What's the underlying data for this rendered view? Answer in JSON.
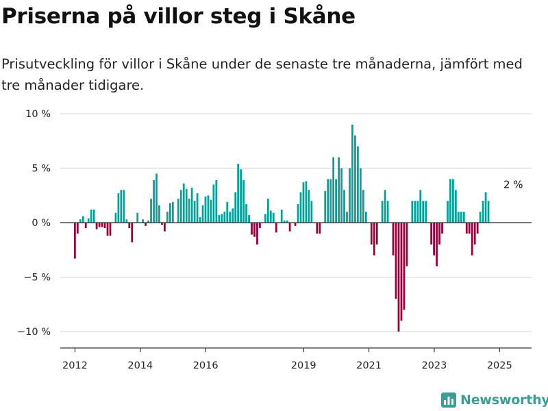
{
  "title": "Priserna på villor steg i Skåne",
  "subtitle": "Prisutveckling för villor i Skåne under de senaste tre månaderna, jämfört med tre månader tidigare.",
  "brand": {
    "name": "Newsworthy",
    "color": "#3a9e97",
    "icon": "newsworthy-logo-icon"
  },
  "chart_data": {
    "type": "bar",
    "ylim": [
      -11.5,
      10.5
    ],
    "xlim": [
      2011.55,
      2025.98
    ],
    "yticks": [
      10,
      5,
      0,
      -5,
      -10
    ],
    "ytick_labels": [
      "10 %",
      "5 %",
      "0 %",
      "−5 %",
      "−10 %"
    ],
    "xticks": [
      2012,
      2014,
      2016,
      2019,
      2021,
      2023,
      2025
    ],
    "xtick_labels": [
      "2012",
      "2014",
      "2016",
      "2019",
      "2021",
      "2023",
      "2025"
    ],
    "grid": true,
    "colors": {
      "positive": "#00a39a",
      "negative": "#9c0039"
    },
    "annotation": {
      "text": "2 %",
      "x": 2025.42,
      "y": 2.8
    },
    "x_start": 2012.0,
    "x_step": 0.0833,
    "values": [
      -3.3,
      -1.0,
      0.3,
      0.6,
      -0.5,
      0.4,
      1.2,
      1.2,
      -0.6,
      -0.4,
      -0.4,
      -0.5,
      -1.2,
      -1.2,
      0.0,
      0.9,
      2.7,
      3.0,
      3.0,
      0.3,
      -0.5,
      -1.8,
      0.0,
      0.9,
      0.0,
      0.3,
      -0.3,
      0.2,
      2.2,
      3.9,
      4.5,
      1.6,
      -0.2,
      -0.8,
      1.0,
      1.8,
      1.9,
      0.0,
      2.2,
      3.0,
      3.6,
      3.1,
      2.2,
      3.2,
      2.0,
      2.7,
      0.5,
      1.6,
      2.4,
      2.5,
      2.1,
      3.5,
      3.9,
      0.7,
      0.8,
      1.0,
      1.9,
      1.0,
      1.3,
      2.8,
      5.4,
      4.9,
      3.9,
      1.7,
      0.7,
      -1.1,
      -1.3,
      -2.0,
      -0.5,
      0.0,
      0.8,
      2.2,
      1.1,
      0.9,
      -0.9,
      0.0,
      1.2,
      0.2,
      0.2,
      -0.8,
      0.0,
      -0.3,
      1.7,
      2.8,
      3.7,
      3.8,
      3.0,
      2.0,
      0.0,
      -1.0,
      -1.0,
      0.0,
      2.9,
      4.0,
      4.0,
      6.0,
      4.0,
      6.0,
      5.0,
      3.0,
      1.0,
      5.0,
      9.0,
      8.0,
      7.0,
      5.0,
      3.0,
      1.0,
      0.0,
      -2.0,
      -3.0,
      -2.0,
      0.0,
      2.0,
      3.0,
      2.0,
      0.0,
      -3.0,
      -7.0,
      -10.0,
      -9.0,
      -8.0,
      -4.0,
      0.0,
      2.0,
      2.0,
      2.0,
      3.0,
      2.0,
      2.0,
      0.0,
      -2.0,
      -3.0,
      -4.0,
      -2.0,
      -1.0,
      0.0,
      2.0,
      4.0,
      4.0,
      3.0,
      1.0,
      1.0,
      1.0,
      -1.0,
      -1.0,
      -3.0,
      -2.0,
      -1.0,
      1.0,
      2.0,
      2.8,
      2.0
    ]
  }
}
